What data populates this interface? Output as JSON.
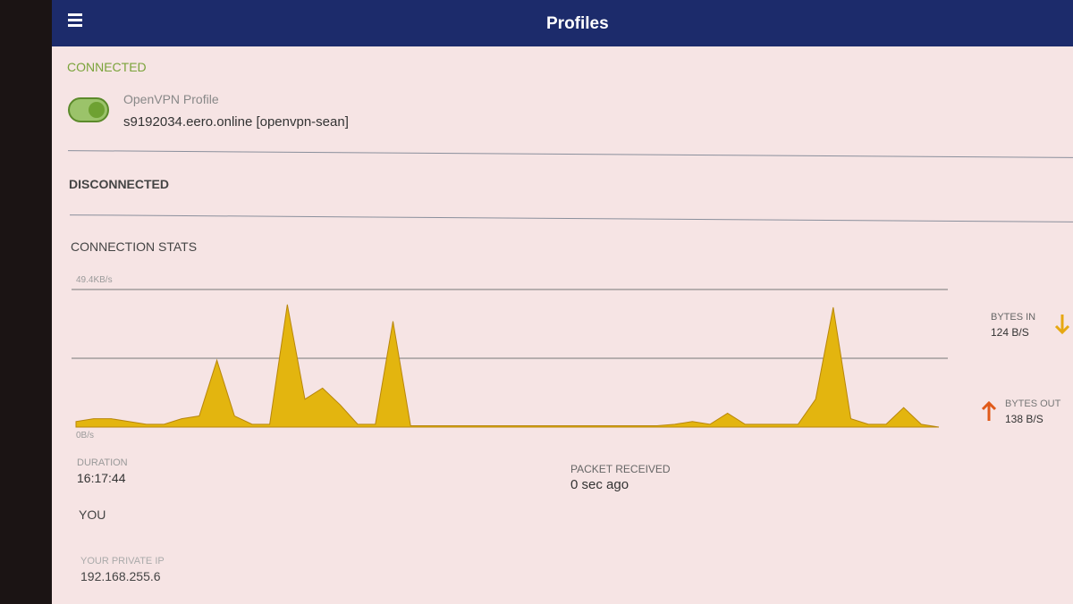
{
  "header": {
    "title": "Profiles"
  },
  "connected": {
    "heading": "CONNECTED",
    "profile_name": "OpenVPN Profile",
    "profile_server": "s9192034.eero.online [openvpn-sean]"
  },
  "disconnected": {
    "heading": "DISCONNECTED"
  },
  "stats": {
    "heading": "CONNECTION STATS",
    "bytes_in": {
      "label": "BYTES IN",
      "value": "124 B/S"
    },
    "bytes_out": {
      "label": "BYTES OUT",
      "value": "138 B/S"
    },
    "duration": {
      "label": "DURATION",
      "value": "16:17:44"
    },
    "packet_received": {
      "label": "PACKET RECEIVED",
      "value": "0 sec ago"
    }
  },
  "you": {
    "heading": "YOU",
    "private_ip": {
      "label": "YOUR PRIVATE IP",
      "value": "192.168.255.6"
    }
  },
  "chart_data": {
    "type": "area",
    "color": "#e3b50f",
    "grid": true,
    "ylim": [
      0,
      49.4
    ],
    "yticks": [
      {
        "value": 0,
        "label": "0B/s"
      },
      {
        "value": 49.4,
        "label": "49.4KB/s"
      }
    ],
    "values": [
      2,
      3,
      3,
      2,
      1,
      1,
      3,
      4,
      24,
      4,
      1,
      1,
      44,
      10,
      14,
      8,
      1,
      1,
      38,
      0.5,
      0.5,
      0.5,
      0.5,
      0.5,
      0.5,
      0.5,
      0.5,
      0.5,
      0.5,
      0.5,
      0.5,
      0.5,
      0.5,
      0.5,
      1,
      2,
      1,
      5,
      1,
      1,
      1,
      1,
      10,
      43,
      3,
      1,
      1,
      7,
      1,
      0
    ]
  }
}
